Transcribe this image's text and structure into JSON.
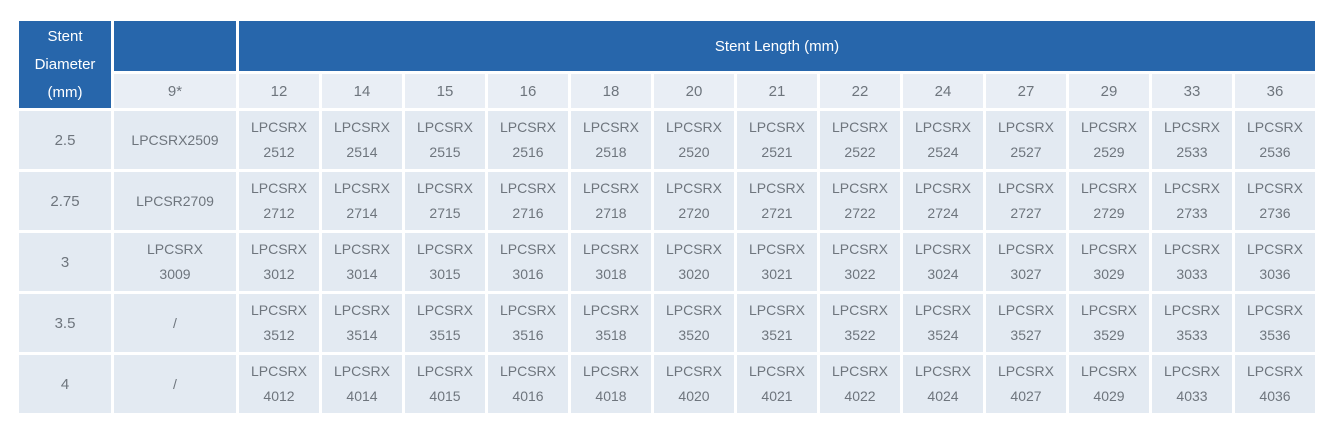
{
  "table": {
    "corner_header": "Stent Diameter (mm)",
    "length_header": "Stent Length (mm)",
    "columns": [
      "9*",
      "12",
      "14",
      "15",
      "16",
      "18",
      "20",
      "21",
      "22",
      "24",
      "27",
      "29",
      "33",
      "36"
    ],
    "rows": [
      {
        "diameter": "2.5",
        "cells": [
          "LPCSRX2509",
          "LPCSRX\n2512",
          "LPCSRX\n2514",
          "LPCSRX\n2515",
          "LPCSRX\n2516",
          "LPCSRX\n2518",
          "LPCSRX\n2520",
          "LPCSRX\n2521",
          "LPCSRX\n2522",
          "LPCSRX\n2524",
          "LPCSRX\n2527",
          "LPCSRX\n2529",
          "LPCSRX\n2533",
          "LPCSRX\n2536"
        ]
      },
      {
        "diameter": "2.75",
        "cells": [
          "LPCSR2709",
          "LPCSRX\n2712",
          "LPCSRX\n2714",
          "LPCSRX\n2715",
          "LPCSRX\n2716",
          "LPCSRX\n2718",
          "LPCSRX\n2720",
          "LPCSRX\n2721",
          "LPCSRX\n2722",
          "LPCSRX\n2724",
          "LPCSRX\n2727",
          "LPCSRX\n2729",
          "LPCSRX\n2733",
          "LPCSRX\n2736"
        ]
      },
      {
        "diameter": "3",
        "cells": [
          "LPCSRX\n3009",
          "LPCSRX\n3012",
          "LPCSRX\n3014",
          "LPCSRX\n3015",
          "LPCSRX\n3016",
          "LPCSRX\n3018",
          "LPCSRX\n3020",
          "LPCSRX\n3021",
          "LPCSRX\n3022",
          "LPCSRX\n3024",
          "LPCSRX\n3027",
          "LPCSRX\n3029",
          "LPCSRX\n3033",
          "LPCSRX\n3036"
        ]
      },
      {
        "diameter": "3.5",
        "cells": [
          "/",
          "LPCSRX\n3512",
          "LPCSRX\n3514",
          "LPCSRX\n3515",
          "LPCSRX\n3516",
          "LPCSRX\n3518",
          "LPCSRX\n3520",
          "LPCSRX\n3521",
          "LPCSRX\n3522",
          "LPCSRX\n3524",
          "LPCSRX\n3527",
          "LPCSRX\n3529",
          "LPCSRX\n3533",
          "LPCSRX\n3536"
        ]
      },
      {
        "diameter": "4",
        "cells": [
          "/",
          "LPCSRX\n4012",
          "LPCSRX\n4014",
          "LPCSRX\n4015",
          "LPCSRX\n4016",
          "LPCSRX\n4018",
          "LPCSRX\n4020",
          "LPCSRX\n4021",
          "LPCSRX\n4022",
          "LPCSRX\n4024",
          "LPCSRX\n4027",
          "LPCSRX\n4029",
          "LPCSRX\n4033",
          "LPCSRX\n4036"
        ]
      }
    ],
    "colors": {
      "header_blue": "#2766ab",
      "subheader_bg": "#e9eef5",
      "cell_bg": "#e3eaf2",
      "text_gray": "#6e757d",
      "grid_white": "#ffffff"
    }
  }
}
